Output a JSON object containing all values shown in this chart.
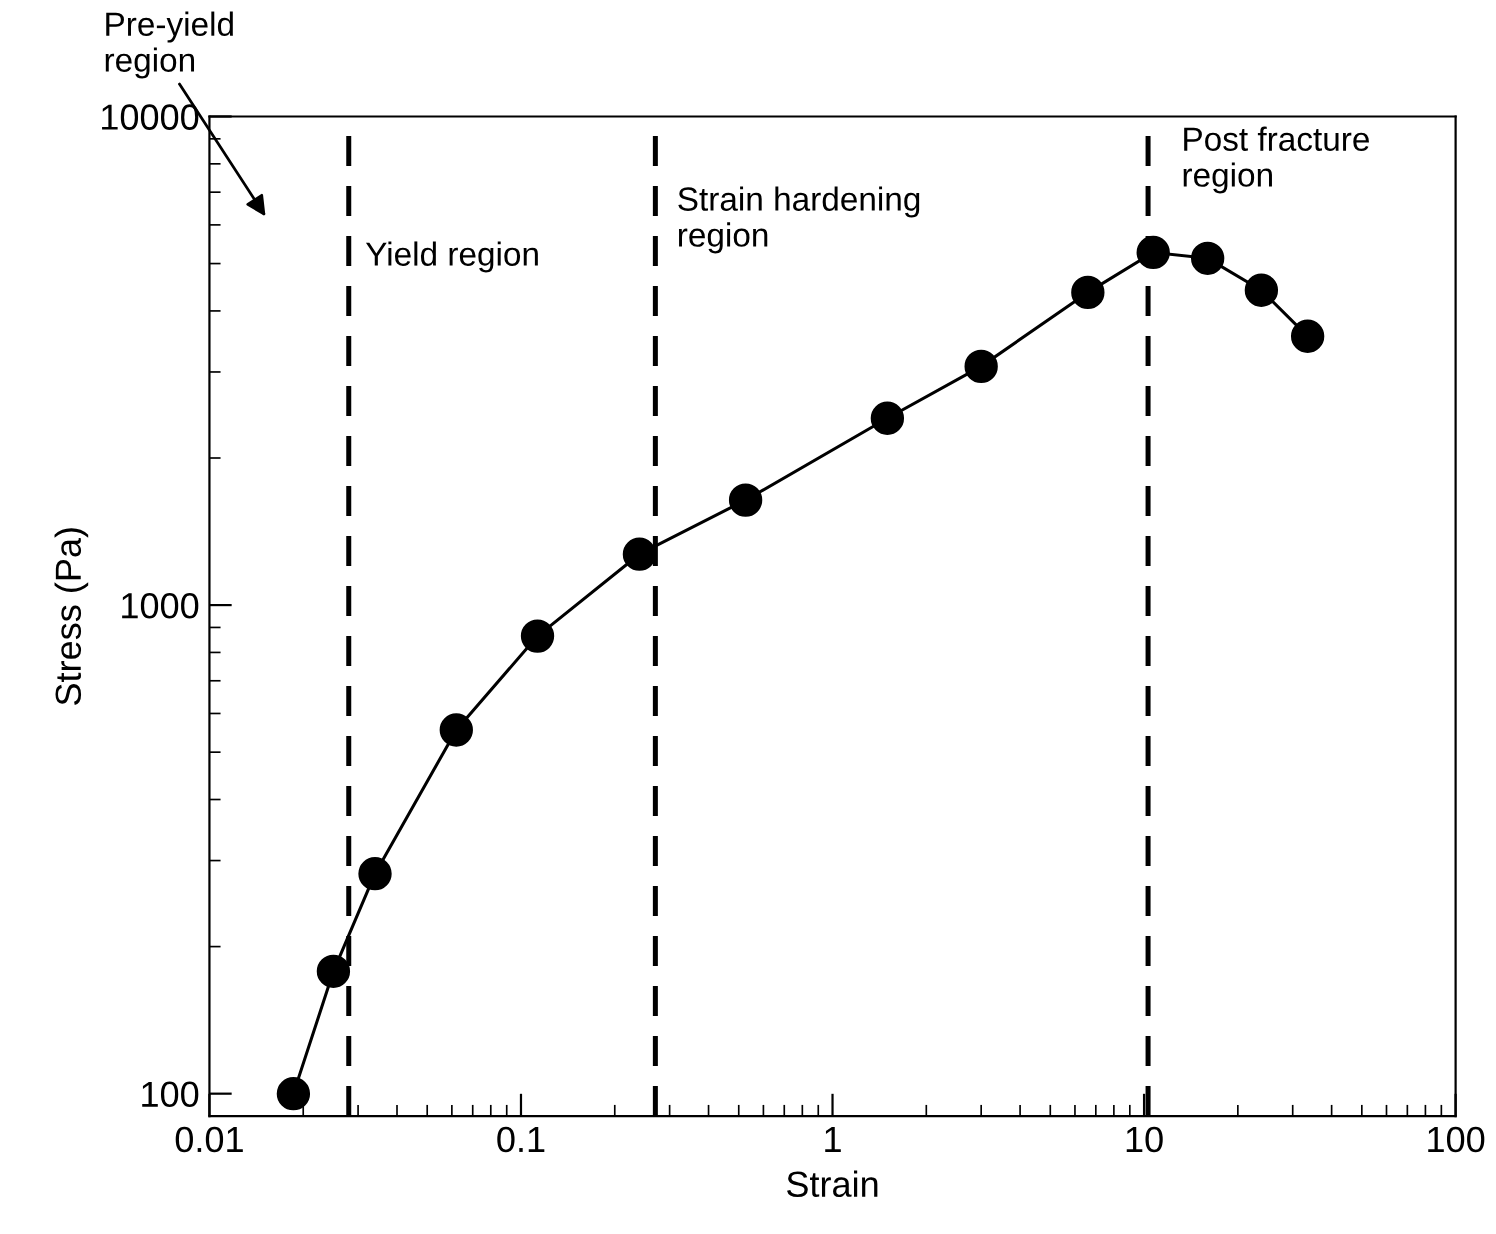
{
  "chart_data": {
    "type": "line",
    "xlabel": "Strain",
    "ylabel": "Stress (Pa)",
    "log": "xy",
    "grid": false,
    "marker": "circle",
    "line_style": "solid",
    "xlim": [
      0.01,
      100
    ],
    "xticks": [
      0.01,
      0.1,
      1,
      10,
      100
    ],
    "ylim": [
      90,
      10000
    ],
    "yticks": [
      100,
      1000,
      10000
    ],
    "series": [
      {
        "color": "#000000",
        "x": [
          0.0186,
          0.025,
          0.034,
          0.062,
          0.113,
          0.24,
          0.526,
          1.5,
          3.0,
          6.6,
          10.7,
          16,
          23.8,
          33.5
        ],
        "values": [
          100,
          178,
          282,
          555,
          864,
          1271,
          1640,
          2412,
          3080,
          4365,
          5270,
          5125,
          4410,
          3550
        ]
      }
    ],
    "ref_lines": [
      {
        "axis": "x",
        "value": 0.028,
        "line_style": "dashed",
        "color": "#000000"
      },
      {
        "axis": "x",
        "value": 0.27,
        "line_style": "dashed",
        "color": "#000000"
      },
      {
        "axis": "x",
        "value": 10.3,
        "line_style": "dashed",
        "color": "#000000"
      }
    ],
    "annotations": [
      "Pre-yield\nregion",
      "Yield region",
      "Strain hardening\nregion",
      "Post fracture\nregion"
    ]
  }
}
